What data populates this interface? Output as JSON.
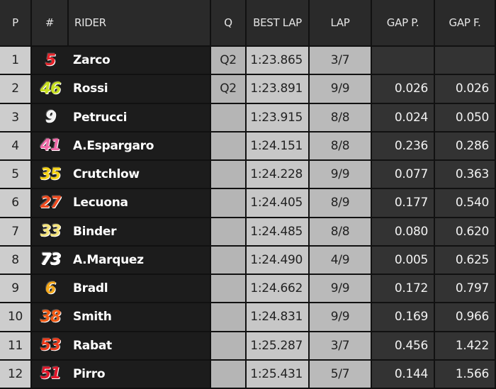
{
  "table": {
    "columns": [
      "P",
      "#",
      "RIDER",
      "Q",
      "BEST LAP",
      "LAP",
      "GAP P.",
      "GAP F."
    ],
    "rows": [
      {
        "position": 1,
        "number": "5",
        "number_color": "#e8232a",
        "rider": "Zarco",
        "q": "Q2",
        "best_lap": "1:23.865",
        "lap": "3/7"
      },
      {
        "position": 2,
        "number": "46",
        "number_color": "#c8e021",
        "rider": "Rossi",
        "q": "Q2",
        "best_lap": "1:23.891",
        "lap": "9/9",
        "gap_p": "0.026",
        "gap_f": "0.026"
      },
      {
        "position": 3,
        "number": "9",
        "number_color": "#f2f2f2",
        "rider": "Petrucci",
        "best_lap": "1:23.915",
        "lap": "8/8",
        "gap_p": "0.024",
        "gap_f": "0.050"
      },
      {
        "position": 4,
        "number": "41",
        "number_color": "#f06aa8",
        "rider": "A.Espargaro",
        "best_lap": "1:24.151",
        "lap": "8/8",
        "gap_p": "0.236",
        "gap_f": "0.286"
      },
      {
        "position": 5,
        "number": "35",
        "number_color": "#f5d214",
        "rider": "Crutchlow",
        "best_lap": "1:24.228",
        "lap": "9/9",
        "gap_p": "0.077",
        "gap_f": "0.363"
      },
      {
        "position": 6,
        "number": "27",
        "number_color": "#f04a1e",
        "rider": "Lecuona",
        "best_lap": "1:24.405",
        "lap": "8/9",
        "gap_p": "0.177",
        "gap_f": "0.540"
      },
      {
        "position": 7,
        "number": "33",
        "number_color": "#f3e27a",
        "rider": "Binder",
        "best_lap": "1:24.485",
        "lap": "8/8",
        "gap_p": "0.080",
        "gap_f": "0.620"
      },
      {
        "position": 8,
        "number": "73",
        "number_color": "#ffffff",
        "rider": "A.Marquez",
        "best_lap": "1:24.490",
        "lap": "4/9",
        "gap_p": "0.005",
        "gap_f": "0.625"
      },
      {
        "position": 9,
        "number": "6",
        "number_color": "#f4a81a",
        "rider": "Bradl",
        "best_lap": "1:24.662",
        "lap": "9/9",
        "gap_p": "0.172",
        "gap_f": "0.797"
      },
      {
        "position": 10,
        "number": "38",
        "number_color": "#f25a14",
        "rider": "Smith",
        "best_lap": "1:24.831",
        "lap": "9/9",
        "gap_p": "0.169",
        "gap_f": "0.966"
      },
      {
        "position": 11,
        "number": "53",
        "number_color": "#ef3b1a",
        "rider": "Rabat",
        "best_lap": "1:25.287",
        "lap": "3/7",
        "gap_p": "0.456",
        "gap_f": "1.422"
      },
      {
        "position": 12,
        "number": "51",
        "number_color": "#e3172b",
        "rider": "Pirro",
        "best_lap": "1:25.431",
        "lap": "5/7",
        "gap_p": "0.144",
        "gap_f": "1.566"
      }
    ]
  }
}
